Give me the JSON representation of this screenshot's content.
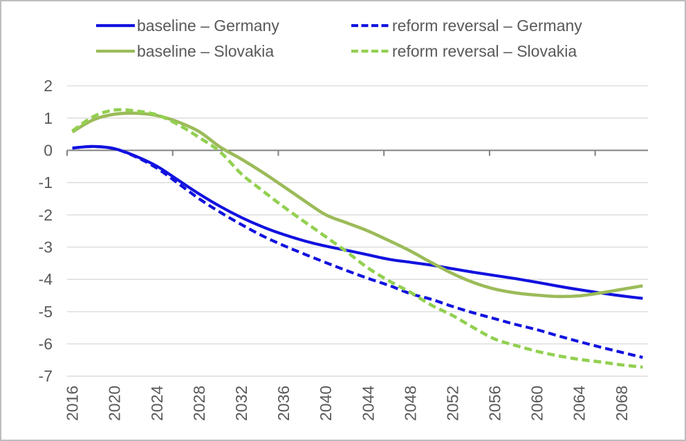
{
  "chart_data": {
    "type": "line",
    "title": "",
    "xlabel": "",
    "ylabel": "",
    "xlim": [
      2015.5,
      2070.5
    ],
    "ylim": [
      -7,
      2
    ],
    "grid": "horizontal",
    "legend_position": "top",
    "x": [
      2016,
      2018,
      2020,
      2022,
      2024,
      2026,
      2028,
      2030,
      2032,
      2034,
      2036,
      2038,
      2040,
      2042,
      2044,
      2046,
      2048,
      2050,
      2052,
      2054,
      2056,
      2058,
      2060,
      2062,
      2064,
      2066,
      2068,
      2070
    ],
    "series": [
      {
        "name": "baseline-germany",
        "label": "baseline – Germany",
        "color": "#1212df",
        "dash": false,
        "width": 4.2,
        "values": [
          0.07,
          0.12,
          0.05,
          -0.18,
          -0.49,
          -0.92,
          -1.35,
          -1.74,
          -2.08,
          -2.37,
          -2.61,
          -2.81,
          -2.97,
          -3.1,
          -3.24,
          -3.38,
          -3.47,
          -3.56,
          -3.67,
          -3.78,
          -3.88,
          -3.98,
          -4.09,
          -4.21,
          -4.32,
          -4.42,
          -4.51,
          -4.59
        ]
      },
      {
        "name": "reform-reversal-germany",
        "label": "reform reversal – Germany",
        "color": "#1212df",
        "dash": true,
        "width": 4.2,
        "values": [
          0.07,
          0.12,
          0.05,
          -0.2,
          -0.55,
          -1.02,
          -1.5,
          -1.92,
          -2.3,
          -2.65,
          -2.95,
          -3.22,
          -3.48,
          -3.73,
          -3.97,
          -4.19,
          -4.44,
          -4.62,
          -4.84,
          -5.04,
          -5.22,
          -5.4,
          -5.56,
          -5.75,
          -5.93,
          -6.1,
          -6.26,
          -6.42
        ]
      },
      {
        "name": "baseline-slovakia",
        "label": "baseline – Slovakia",
        "color": "#9bbb59",
        "dash": false,
        "width": 4.6,
        "values": [
          0.57,
          0.95,
          1.12,
          1.15,
          1.08,
          0.88,
          0.58,
          0.1,
          -0.27,
          -0.68,
          -1.12,
          -1.57,
          -2.0,
          -2.25,
          -2.5,
          -2.8,
          -3.12,
          -3.48,
          -3.82,
          -4.1,
          -4.3,
          -4.42,
          -4.49,
          -4.53,
          -4.51,
          -4.42,
          -4.31,
          -4.2
        ]
      },
      {
        "name": "reform-reversal-slovakia",
        "label": "reform reversal – Slovakia",
        "color": "#92d050",
        "dash": true,
        "width": 4.6,
        "values": [
          0.6,
          1.05,
          1.25,
          1.22,
          1.1,
          0.8,
          0.4,
          -0.05,
          -0.73,
          -1.25,
          -1.75,
          -2.22,
          -2.68,
          -3.15,
          -3.65,
          -4.05,
          -4.4,
          -4.8,
          -5.12,
          -5.5,
          -5.85,
          -6.05,
          -6.23,
          -6.37,
          -6.48,
          -6.56,
          -6.65,
          -6.72
        ]
      }
    ],
    "y_ticks": [
      2,
      1,
      0,
      -1,
      -2,
      -3,
      -4,
      -5,
      -6,
      -7
    ],
    "y_tick_labels": [
      "2",
      "1",
      "0",
      "-1",
      "-2",
      "-3",
      "-4",
      "-5",
      "-6",
      "-7"
    ],
    "x_tick_years": [
      2016,
      2020,
      2024,
      2028,
      2032,
      2036,
      2040,
      2044,
      2048,
      2052,
      2056,
      2060,
      2064,
      2068
    ],
    "x_tick_labels": [
      "2016",
      "2020",
      "2024",
      "2028",
      "2032",
      "2036",
      "2040",
      "2044",
      "2048",
      "2052",
      "2056",
      "2060",
      "2064",
      "2068"
    ],
    "zero_axis_tick_positions": [
      2015.5,
      2025.5,
      2035.5,
      2045.5,
      2055.5,
      2065.5
    ],
    "colors": {
      "grid": "#d9d9d9",
      "zero_axis": "#808080",
      "axis_text": "#595959",
      "frame_border": "#bdbdbd",
      "background": "#ffffff"
    }
  }
}
